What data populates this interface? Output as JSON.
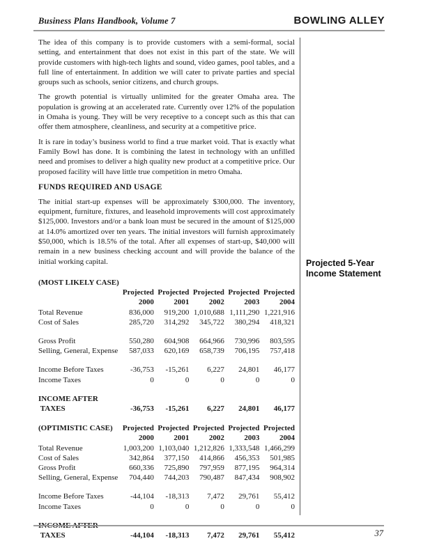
{
  "header": {
    "left_title": "Business Plans Handbook, Volume 7",
    "right_title": "BOWLING ALLEY"
  },
  "paragraphs": [
    "The idea of this company is to provide customers with a semi-formal, social setting, and entertainment that does not exist in this part of the state. We will provide customers with high-tech lights and sound, video games, pool tables, and a full line of entertainment. In addition we will cater to private parties and special groups such as schools, senior citizens, and church groups.",
    "The growth potential is virtually unlimited for the greater Omaha area. The population is growing at an accelerated rate. Currently over 12% of the population in Omaha is young. They will be very receptive to a concept such as this that can offer them atmosphere, cleanliness, and security at a competitive price.",
    "It is rare in today’s business world to find a true market void. That is exactly what Family Bowl has done. It is combining the latest in technology with an unfilled need and promises to deliver a high quality new product at a competitive price. Our proposed facility will have little true competition in metro Omaha.",
    "The initial start-up expenses will be approximately $300,000. The inventory, equipment, furniture, fixtures, and leasehold improvements will cost approximately $125,000. Investors and/or a bank loan must be secured in the amount of $125,000 at 14.0% amortized over ten years. The initial investors will furnish approximately $50,000, which is 18.5% of the total. After all expenses of start-up, $40,000 will remain in a new business checking account and will provide the balance of the initial working capital."
  ],
  "funds_heading": "FUNDS REQUIRED AND USAGE",
  "sidebar_note": {
    "line1": "Projected 5-Year",
    "line2": "Income Statement"
  },
  "income_tables": [
    {
      "case_label": "(MOST LIKELY CASE)",
      "case_label_inline": false,
      "col_header_top": [
        "Projected",
        "Projected",
        "Projected",
        "Projected",
        "Projected"
      ],
      "col_header_years": [
        "2000",
        "2001",
        "2002",
        "2003",
        "2004"
      ],
      "rows": [
        {
          "label": "Total Revenue",
          "values": [
            "836,000",
            "919,200",
            "1,010,688",
            "1,111,290",
            "1,221,916"
          ],
          "gap_before": false
        },
        {
          "label": "Cost of Sales",
          "values": [
            "285,720",
            "314,292",
            "345,722",
            "380,294",
            "418,321"
          ],
          "gap_before": false
        },
        {
          "label": "Gross Profit",
          "values": [
            "550,280",
            "604,908",
            "664,966",
            "730,996",
            "803,595"
          ],
          "gap_before": true
        },
        {
          "label": "Selling, General, Expense",
          "values": [
            "587,033",
            "620,169",
            "658,739",
            "706,195",
            "757,418"
          ],
          "gap_before": false
        },
        {
          "label": "Income Before Taxes",
          "values": [
            "-36,753",
            "-15,261",
            "6,227",
            "24,801",
            "46,177"
          ],
          "gap_before": true
        },
        {
          "label": "Income Taxes",
          "values": [
            "0",
            "0",
            "0",
            "0",
            "0"
          ],
          "gap_before": false
        }
      ],
      "total_label_line1": "INCOME AFTER",
      "total_label_line2": "TAXES",
      "total_values": [
        "-36,753",
        "-15,261",
        "6,227",
        "24,801",
        "46,177"
      ]
    },
    {
      "case_label": "(OPTIMISTIC CASE)",
      "case_label_inline": true,
      "col_header_top": [
        "Projected",
        "Projected",
        "Projected",
        "Projected",
        "Projected"
      ],
      "col_header_years": [
        "2000",
        "2001",
        "2002",
        "2003",
        "2004"
      ],
      "rows": [
        {
          "label": "Total Revenue",
          "values": [
            "1,003,200",
            "1,103,040",
            "1,212,826",
            "1,333,548",
            "1,466,299"
          ],
          "gap_before": false
        },
        {
          "label": "Cost of Sales",
          "values": [
            "342,864",
            "377,150",
            "414,866",
            "456,353",
            "501,985"
          ],
          "gap_before": false
        },
        {
          "label": "Gross Profit",
          "values": [
            "660,336",
            "725,890",
            "797,959",
            "877,195",
            "964,314"
          ],
          "gap_before": false
        },
        {
          "label": "Selling, General, Expense",
          "values": [
            "704,440",
            "744,203",
            "790,487",
            "847,434",
            "908,902"
          ],
          "gap_before": false
        },
        {
          "label": "Income Before Taxes",
          "values": [
            "-44,104",
            "-18,313",
            "7,472",
            "29,761",
            "55,412"
          ],
          "gap_before": true
        },
        {
          "label": "Income Taxes",
          "values": [
            "0",
            "0",
            "0",
            "0",
            "0"
          ],
          "gap_before": false
        }
      ],
      "total_label_line1": "INCOME AFTER",
      "total_label_line2": "TAXES",
      "total_values": [
        "-44,104",
        "-18,313",
        "7,472",
        "29,761",
        "55,412"
      ]
    }
  ],
  "footer": {
    "page_number": "37"
  },
  "colors": {
    "text": "#1a1a1a",
    "rule": "#9a9a9a",
    "divider": "#555555",
    "background": "#ffffff"
  }
}
